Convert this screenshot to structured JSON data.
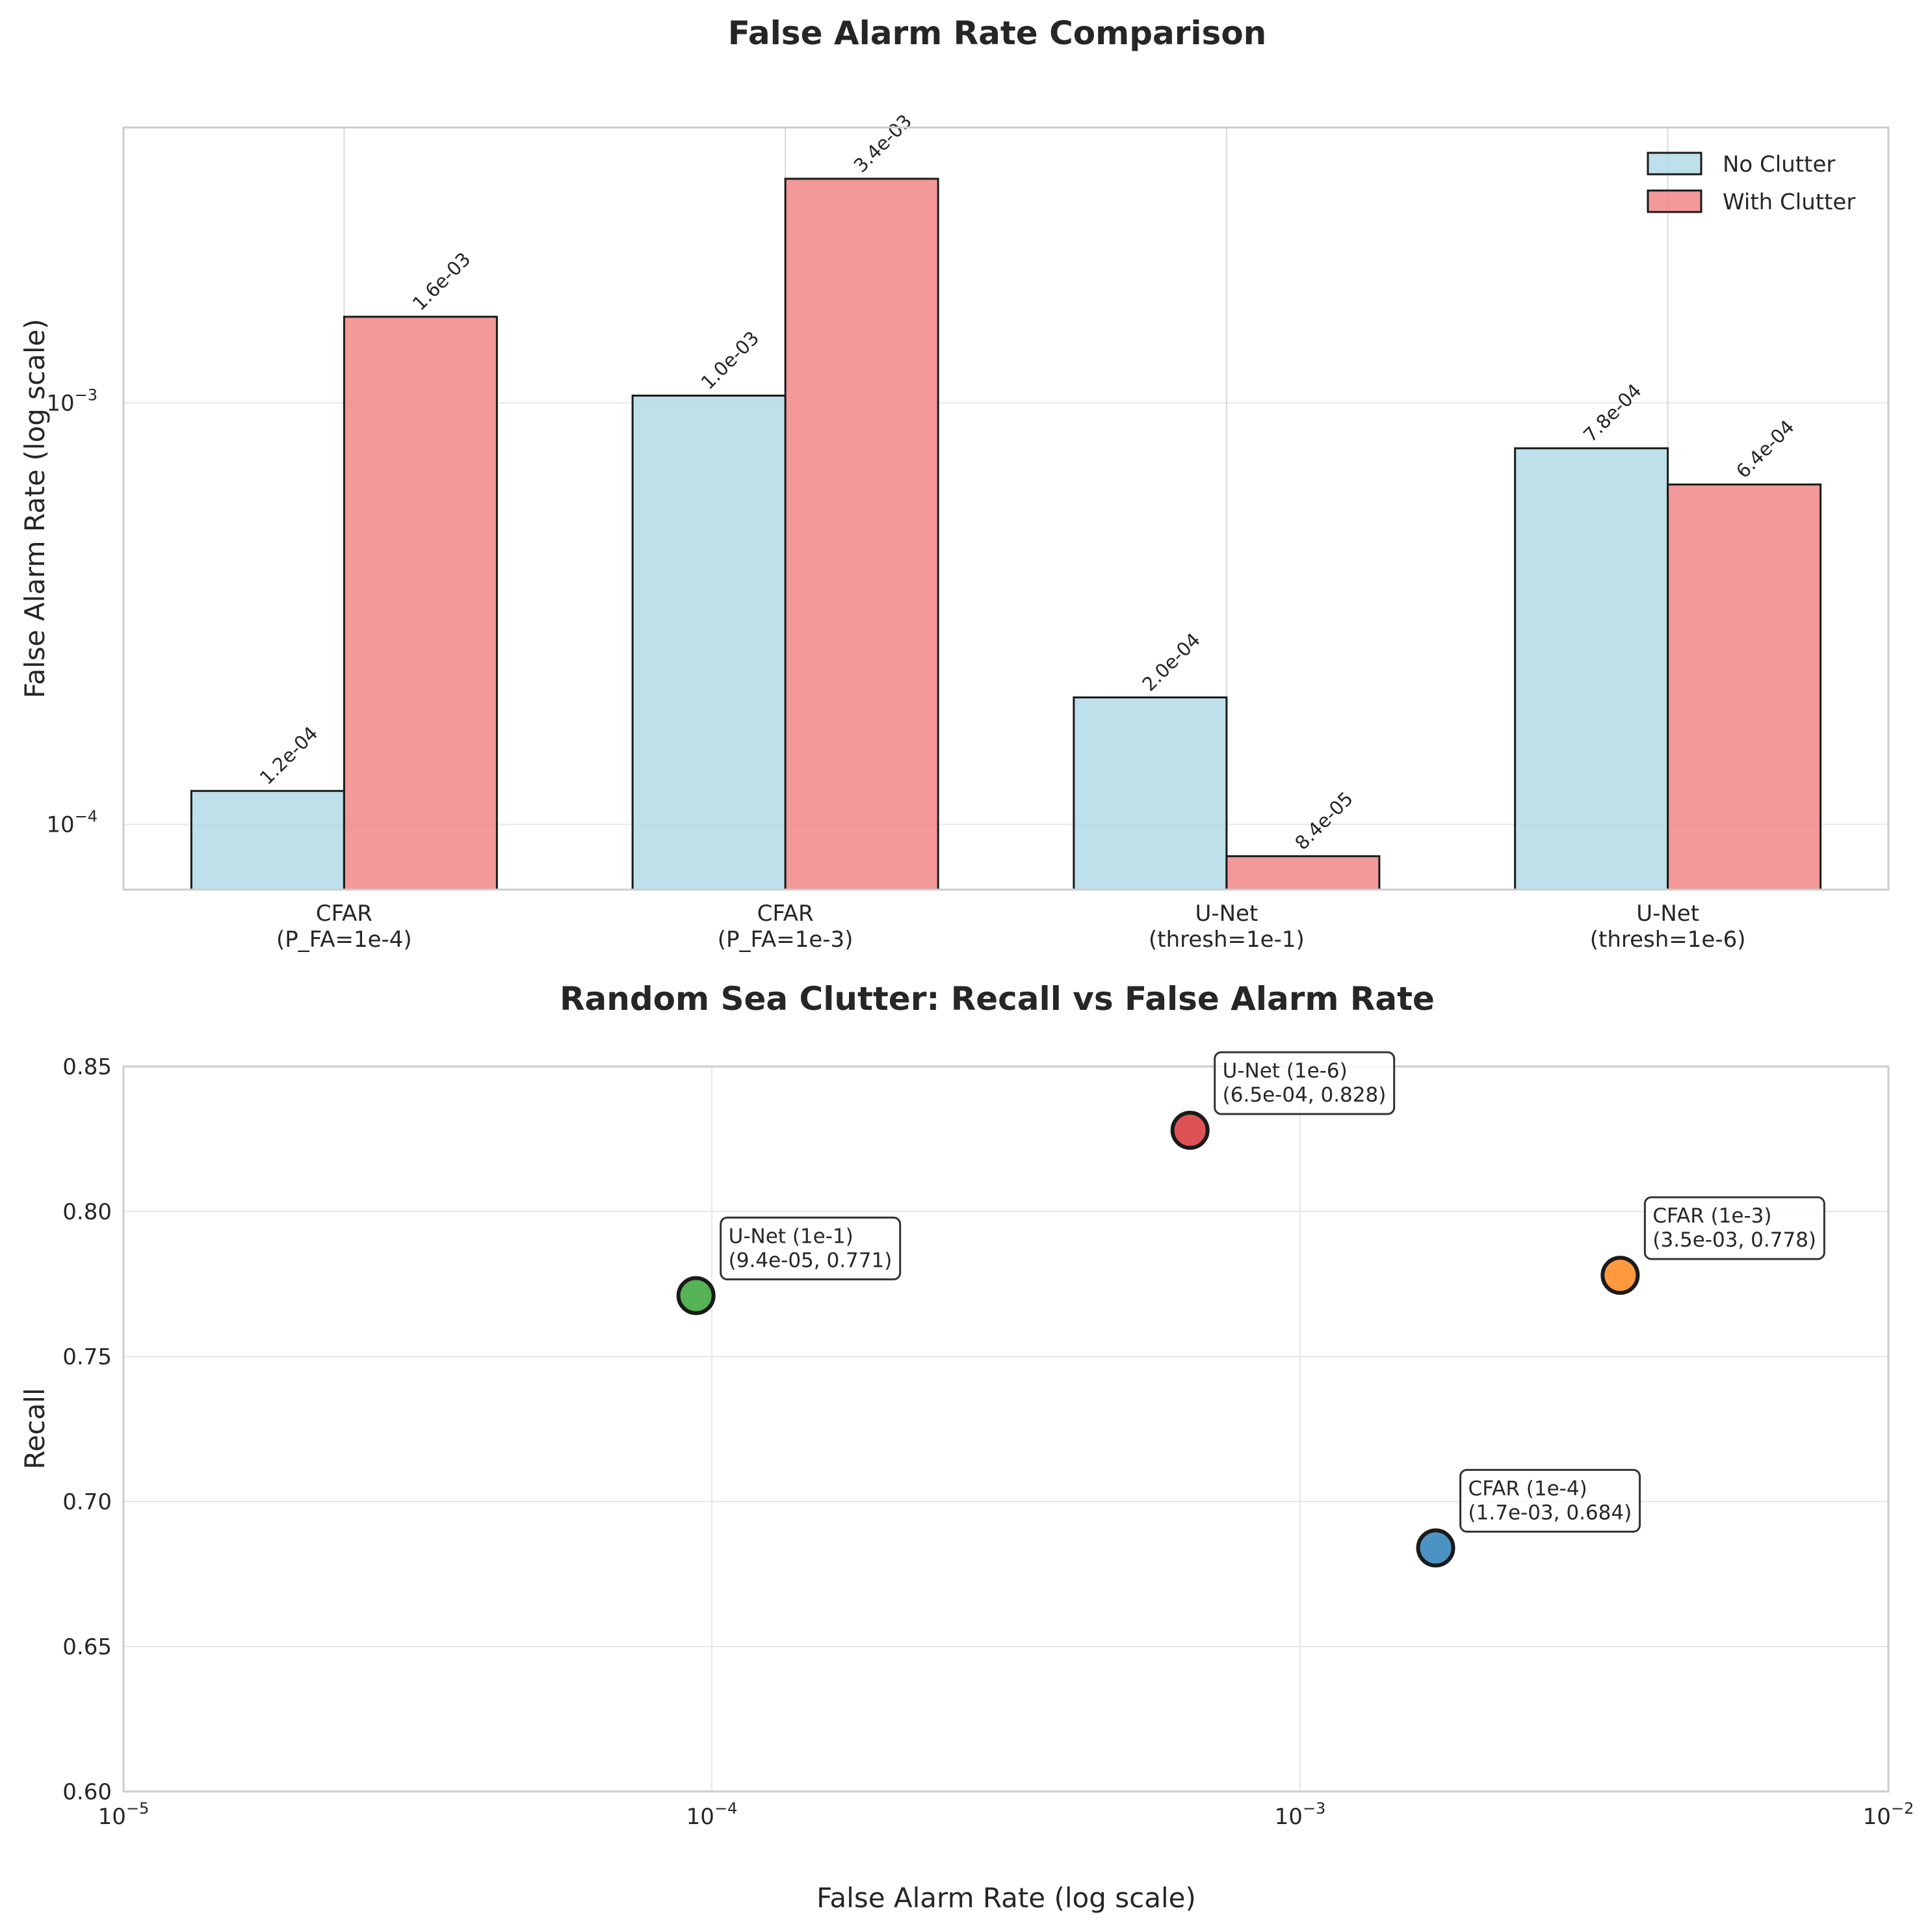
{
  "chart_data": [
    {
      "type": "bar",
      "title": "False Alarm Rate Comparison",
      "xlabel": "",
      "ylabel": "False Alarm Rate (log scale)",
      "yscale": "log",
      "ylim": [
        7e-05,
        0.0045
      ],
      "yticks": [
        {
          "value": 0.0001,
          "base": "10",
          "exp": "−4"
        },
        {
          "value": 0.001,
          "base": "10",
          "exp": "−3"
        }
      ],
      "categories": [
        [
          "CFAR",
          "(P_FA=1e-4)"
        ],
        [
          "CFAR",
          "(P_FA=1e-3)"
        ],
        [
          "U-Net",
          "(thresh=1e-1)"
        ],
        [
          "U-Net",
          "(thresh=1e-6)"
        ]
      ],
      "series": [
        {
          "name": "No Clutter",
          "color": "#add8e6",
          "values": [
            0.00012,
            0.00104,
            0.0002,
            0.00078
          ],
          "labels": [
            "1.2e-04",
            "1.0e-03",
            "2.0e-04",
            "7.8e-04"
          ]
        },
        {
          "name": "With Clutter",
          "color": "#f08080",
          "values": [
            0.0016,
            0.0034,
            8.4e-05,
            0.00064
          ],
          "labels": [
            "1.6e-03",
            "3.4e-03",
            "8.4e-05",
            "6.4e-04"
          ]
        }
      ],
      "legend": {
        "position": "top-right"
      },
      "grid": true
    },
    {
      "type": "scatter",
      "title": "Random Sea Clutter: Recall vs False Alarm Rate",
      "xlabel": "False Alarm Rate (log scale)",
      "ylabel": "Recall",
      "xscale": "log",
      "xlim": [
        1e-05,
        0.01
      ],
      "ylim": [
        0.6,
        0.85
      ],
      "xticks": [
        {
          "value": 1e-05,
          "base": "10",
          "exp": "−5"
        },
        {
          "value": 0.0001,
          "base": "10",
          "exp": "−4"
        },
        {
          "value": 0.001,
          "base": "10",
          "exp": "−3"
        },
        {
          "value": 0.01,
          "base": "10",
          "exp": "−2"
        }
      ],
      "yticks": [
        "0.60",
        "0.65",
        "0.70",
        "0.75",
        "0.80",
        "0.85"
      ],
      "points": [
        {
          "x": 0.0017,
          "y": 0.684,
          "color": "#1f77b4",
          "label_line1": "CFAR (1e-4)",
          "label_line2": "(1.7e-03, 0.684)"
        },
        {
          "x": 0.0035,
          "y": 0.778,
          "color": "#ff7f0e",
          "label_line1": "CFAR (1e-3)",
          "label_line2": "(3.5e-03, 0.778)"
        },
        {
          "x": 9.4e-05,
          "y": 0.771,
          "color": "#2ca02c",
          "label_line1": "U-Net (1e-1)",
          "label_line2": "(9.4e-05, 0.771)"
        },
        {
          "x": 0.00065,
          "y": 0.828,
          "color": "#d62728",
          "label_line1": "U-Net (1e-6)",
          "label_line2": "(6.5e-04, 0.828)"
        }
      ],
      "grid": true
    }
  ]
}
